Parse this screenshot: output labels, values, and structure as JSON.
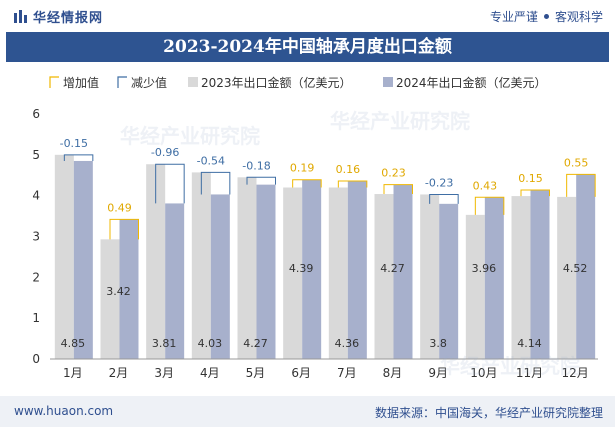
{
  "header": {
    "brand": "华经情报网",
    "tag1": "专业严谨",
    "tag2": "客观科学"
  },
  "title": "2023-2024年中国轴承月度出口金额",
  "footer": {
    "url": "www.huaon.com",
    "source": "数据来源：中国海关，华经产业研究院整理"
  },
  "watermark": {
    "text": "华经产业研究院",
    "url": "www.huaon.com"
  },
  "colors": {
    "bar2023": "#d9d9d9",
    "bar2024": "#a7b0cc",
    "increase": "#f0b800",
    "decrease": "#3f6ea4",
    "title_bg": "#2e5491"
  },
  "chart_data": {
    "type": "bar",
    "title": "2023-2024年中国轴承月度出口金额",
    "categories": [
      "1月",
      "2月",
      "3月",
      "4月",
      "5月",
      "6月",
      "7月",
      "8月",
      "9月",
      "10月",
      "11月",
      "12月"
    ],
    "series": [
      {
        "name": "2023年出口金额（亿美元）",
        "values": [
          5.0,
          2.93,
          4.77,
          4.57,
          4.45,
          4.2,
          4.2,
          4.04,
          4.03,
          3.53,
          3.99,
          3.97
        ]
      },
      {
        "name": "2024年出口金额（亿美元）",
        "values": [
          4.85,
          3.42,
          3.81,
          4.03,
          4.27,
          4.39,
          4.36,
          4.27,
          3.8,
          3.96,
          4.14,
          4.52
        ]
      }
    ],
    "changes": [
      -0.15,
      0.49,
      -0.96,
      -0.54,
      -0.18,
      0.19,
      0.16,
      0.23,
      -0.23,
      0.43,
      0.15,
      0.55
    ],
    "change_labels": [
      "-0.15",
      "0.49",
      "-0.96",
      "-0.54",
      "-0.18",
      "0.19",
      "0.16",
      "0.23",
      "-0.23",
      "0.43",
      "0.15",
      "0.55"
    ],
    "value_labels_2024": [
      "4.85",
      "3.42",
      "3.81",
      "4.03",
      "4.27",
      "4.39",
      "4.36",
      "4.27",
      "3.8",
      "3.96",
      "4.14",
      "4.52"
    ],
    "legend": [
      "增加值",
      "减少值",
      "2023年出口金额（亿美元）",
      "2024年出口金额（亿美元）"
    ],
    "legend_position": "top",
    "yticks": [
      "0",
      "1",
      "2",
      "3",
      "4",
      "5",
      "6"
    ],
    "ylim": [
      0,
      6
    ],
    "grid": false
  }
}
